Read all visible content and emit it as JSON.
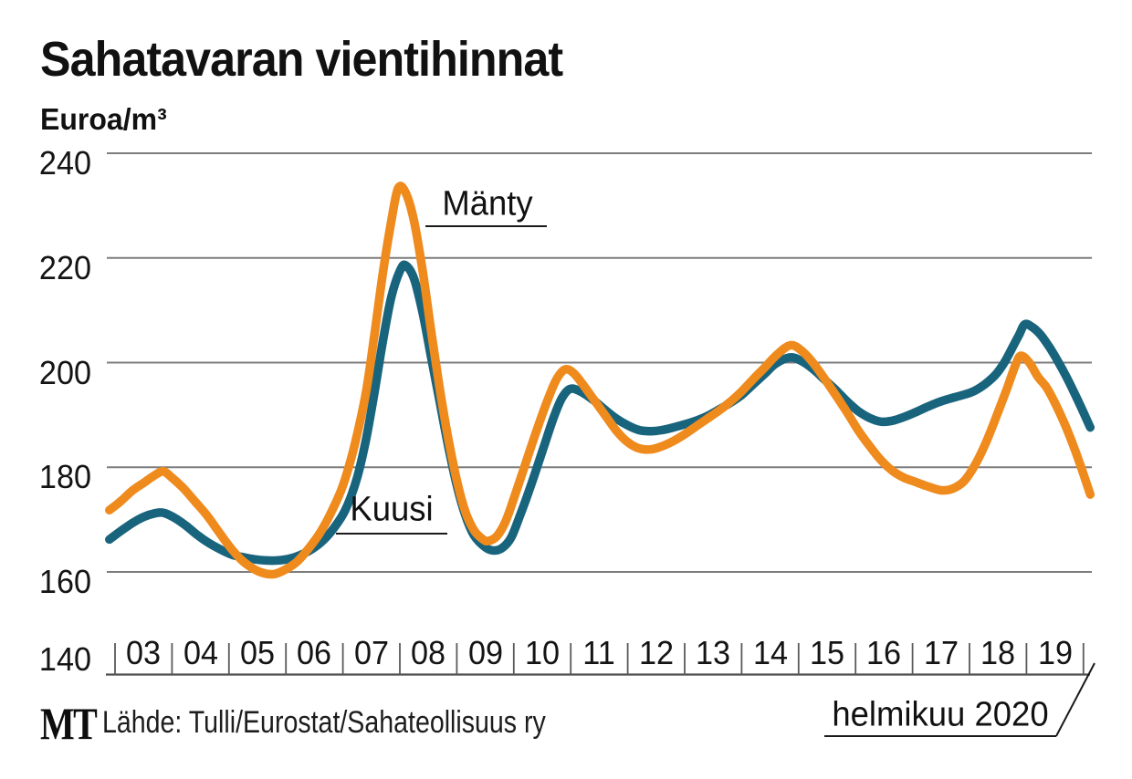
{
  "title": "Sahatavaran vientihinnat",
  "y_axis_title": "Euroa/m³",
  "annotation": "helmikuu 2020",
  "source": {
    "logo": "MT",
    "text": "Lähde: Tulli/Eurostat/Sahateollisuus ry"
  },
  "colors": {
    "manty": "#ef8a1d",
    "kuusi": "#19647d",
    "grid": "#7d7d7d",
    "axis": "#4d4d4d",
    "text": "#111111",
    "rule": "#1a1a1a",
    "background": "#ffffff"
  },
  "chart_data": {
    "type": "line",
    "title": "Sahatavaran vientihinnat",
    "ylabel": "Euroa/m³",
    "ylim": [
      140,
      240
    ],
    "grid": "horizontal",
    "legend_position": "inline-annotations",
    "y_ticks": [
      240,
      220,
      200,
      180,
      160,
      140
    ],
    "x_tick_years": [
      2003,
      2004,
      2005,
      2006,
      2007,
      2008,
      2009,
      2010,
      2011,
      2012,
      2013,
      2014,
      2015,
      2016,
      2017,
      2018,
      2019,
      2020
    ],
    "x_tick_labels": [
      "03",
      "04",
      "05",
      "06",
      "07",
      "08",
      "09",
      "10",
      "11",
      "12",
      "13",
      "14",
      "15",
      "16",
      "17",
      "18",
      "19"
    ],
    "x_range": [
      2002.9,
      2020.12
    ],
    "end_note": "helmikuu 2020",
    "series": [
      {
        "name": "Mänty",
        "color": "#ef8a1d",
        "points": [
          [
            2002.9,
            171.8
          ],
          [
            2003.1,
            173.5
          ],
          [
            2003.3,
            175.5
          ],
          [
            2003.5,
            177.0
          ],
          [
            2003.7,
            178.5
          ],
          [
            2003.85,
            179.2
          ],
          [
            2004.0,
            178.0
          ],
          [
            2004.2,
            176.0
          ],
          [
            2004.4,
            173.5
          ],
          [
            2004.6,
            171.0
          ],
          [
            2004.8,
            168.0
          ],
          [
            2005.0,
            165.0
          ],
          [
            2005.2,
            162.5
          ],
          [
            2005.4,
            160.8
          ],
          [
            2005.6,
            159.8
          ],
          [
            2005.8,
            159.6
          ],
          [
            2006.0,
            160.5
          ],
          [
            2006.2,
            162.0
          ],
          [
            2006.4,
            164.5
          ],
          [
            2006.6,
            167.5
          ],
          [
            2006.8,
            171.5
          ],
          [
            2007.0,
            176.5
          ],
          [
            2007.2,
            184.0
          ],
          [
            2007.4,
            194.0
          ],
          [
            2007.55,
            205.0
          ],
          [
            2007.7,
            217.0
          ],
          [
            2007.85,
            227.0
          ],
          [
            2007.97,
            233.3
          ],
          [
            2008.1,
            232.5
          ],
          [
            2008.25,
            227.0
          ],
          [
            2008.4,
            217.5
          ],
          [
            2008.55,
            206.0
          ],
          [
            2008.7,
            195.0
          ],
          [
            2008.85,
            185.5
          ],
          [
            2009.0,
            177.5
          ],
          [
            2009.15,
            171.5
          ],
          [
            2009.3,
            168.0
          ],
          [
            2009.45,
            166.3
          ],
          [
            2009.55,
            165.9
          ],
          [
            2009.7,
            166.8
          ],
          [
            2009.85,
            169.5
          ],
          [
            2010.0,
            174.0
          ],
          [
            2010.2,
            180.5
          ],
          [
            2010.4,
            187.0
          ],
          [
            2010.6,
            193.0
          ],
          [
            2010.75,
            196.8
          ],
          [
            2010.9,
            198.7
          ],
          [
            2011.05,
            198.0
          ],
          [
            2011.2,
            196.0
          ],
          [
            2011.4,
            193.0
          ],
          [
            2011.6,
            190.0
          ],
          [
            2011.8,
            187.0
          ],
          [
            2012.0,
            184.8
          ],
          [
            2012.2,
            183.6
          ],
          [
            2012.4,
            183.4
          ],
          [
            2012.6,
            184.0
          ],
          [
            2012.8,
            185.0
          ],
          [
            2013.0,
            186.3
          ],
          [
            2013.2,
            187.8
          ],
          [
            2013.4,
            189.3
          ],
          [
            2013.6,
            190.8
          ],
          [
            2013.8,
            192.5
          ],
          [
            2014.0,
            194.5
          ],
          [
            2014.2,
            196.8
          ],
          [
            2014.4,
            199.0
          ],
          [
            2014.6,
            201.3
          ],
          [
            2014.85,
            203.3
          ],
          [
            2015.05,
            202.3
          ],
          [
            2015.25,
            200.0
          ],
          [
            2015.45,
            197.0
          ],
          [
            2015.65,
            193.8
          ],
          [
            2015.85,
            190.5
          ],
          [
            2016.05,
            187.0
          ],
          [
            2016.25,
            184.0
          ],
          [
            2016.45,
            181.3
          ],
          [
            2016.65,
            179.3
          ],
          [
            2016.85,
            178.0
          ],
          [
            2017.05,
            177.2
          ],
          [
            2017.25,
            176.4
          ],
          [
            2017.5,
            175.6
          ],
          [
            2017.7,
            175.9
          ],
          [
            2017.9,
            177.3
          ],
          [
            2018.1,
            180.5
          ],
          [
            2018.3,
            185.0
          ],
          [
            2018.5,
            190.5
          ],
          [
            2018.65,
            194.8
          ],
          [
            2018.8,
            199.3
          ],
          [
            2018.9,
            201.3
          ],
          [
            2019.05,
            200.0
          ],
          [
            2019.2,
            197.3
          ],
          [
            2019.35,
            195.3
          ],
          [
            2019.5,
            192.3
          ],
          [
            2019.65,
            188.8
          ],
          [
            2019.8,
            184.8
          ],
          [
            2019.95,
            180.3
          ],
          [
            2020.12,
            174.8
          ]
        ]
      },
      {
        "name": "Kuusi",
        "color": "#19647d",
        "points": [
          [
            2002.9,
            166.2
          ],
          [
            2003.1,
            167.8
          ],
          [
            2003.3,
            169.3
          ],
          [
            2003.5,
            170.5
          ],
          [
            2003.7,
            171.2
          ],
          [
            2003.85,
            171.3
          ],
          [
            2004.05,
            170.3
          ],
          [
            2004.25,
            168.8
          ],
          [
            2004.45,
            167.0
          ],
          [
            2004.65,
            165.5
          ],
          [
            2004.85,
            164.3
          ],
          [
            2005.05,
            163.3
          ],
          [
            2005.25,
            162.8
          ],
          [
            2005.45,
            162.4
          ],
          [
            2005.65,
            162.2
          ],
          [
            2005.85,
            162.2
          ],
          [
            2006.05,
            162.5
          ],
          [
            2006.25,
            163.2
          ],
          [
            2006.45,
            164.3
          ],
          [
            2006.65,
            166.0
          ],
          [
            2006.85,
            168.5
          ],
          [
            2007.05,
            172.0
          ],
          [
            2007.25,
            178.0
          ],
          [
            2007.4,
            185.0
          ],
          [
            2007.55,
            194.0
          ],
          [
            2007.7,
            204.0
          ],
          [
            2007.85,
            212.5
          ],
          [
            2008.0,
            217.5
          ],
          [
            2008.1,
            218.6
          ],
          [
            2008.25,
            216.0
          ],
          [
            2008.4,
            209.5
          ],
          [
            2008.55,
            201.0
          ],
          [
            2008.7,
            192.5
          ],
          [
            2008.85,
            184.0
          ],
          [
            2009.0,
            176.5
          ],
          [
            2009.15,
            170.8
          ],
          [
            2009.3,
            167.0
          ],
          [
            2009.5,
            164.7
          ],
          [
            2009.65,
            164.1
          ],
          [
            2009.8,
            164.6
          ],
          [
            2009.95,
            166.5
          ],
          [
            2010.1,
            170.5
          ],
          [
            2010.3,
            176.5
          ],
          [
            2010.5,
            183.0
          ],
          [
            2010.7,
            189.5
          ],
          [
            2010.85,
            193.3
          ],
          [
            2011.0,
            195.0
          ],
          [
            2011.2,
            194.3
          ],
          [
            2011.4,
            192.8
          ],
          [
            2011.6,
            191.0
          ],
          [
            2011.8,
            189.3
          ],
          [
            2012.0,
            188.0
          ],
          [
            2012.2,
            187.1
          ],
          [
            2012.4,
            186.9
          ],
          [
            2012.6,
            187.1
          ],
          [
            2012.8,
            187.6
          ],
          [
            2013.0,
            188.2
          ],
          [
            2013.2,
            188.9
          ],
          [
            2013.4,
            189.8
          ],
          [
            2013.6,
            191.0
          ],
          [
            2013.8,
            192.3
          ],
          [
            2014.0,
            193.8
          ],
          [
            2014.2,
            195.8
          ],
          [
            2014.4,
            197.8
          ],
          [
            2014.6,
            199.8
          ],
          [
            2014.85,
            201.0
          ],
          [
            2015.05,
            200.3
          ],
          [
            2015.25,
            198.8
          ],
          [
            2015.45,
            196.8
          ],
          [
            2015.65,
            194.8
          ],
          [
            2015.85,
            192.6
          ],
          [
            2016.05,
            190.7
          ],
          [
            2016.25,
            189.4
          ],
          [
            2016.45,
            188.7
          ],
          [
            2016.65,
            188.9
          ],
          [
            2016.85,
            189.6
          ],
          [
            2017.05,
            190.5
          ],
          [
            2017.25,
            191.5
          ],
          [
            2017.45,
            192.4
          ],
          [
            2017.65,
            193.1
          ],
          [
            2017.85,
            193.7
          ],
          [
            2018.05,
            194.4
          ],
          [
            2018.25,
            195.7
          ],
          [
            2018.45,
            197.6
          ],
          [
            2018.6,
            199.8
          ],
          [
            2018.75,
            202.8
          ],
          [
            2018.87,
            205.3
          ],
          [
            2018.97,
            207.3
          ],
          [
            2019.1,
            206.8
          ],
          [
            2019.25,
            205.3
          ],
          [
            2019.4,
            203.0
          ],
          [
            2019.55,
            200.3
          ],
          [
            2019.7,
            197.3
          ],
          [
            2019.85,
            194.0
          ],
          [
            2020.0,
            190.5
          ],
          [
            2020.12,
            187.6
          ]
        ]
      }
    ]
  }
}
